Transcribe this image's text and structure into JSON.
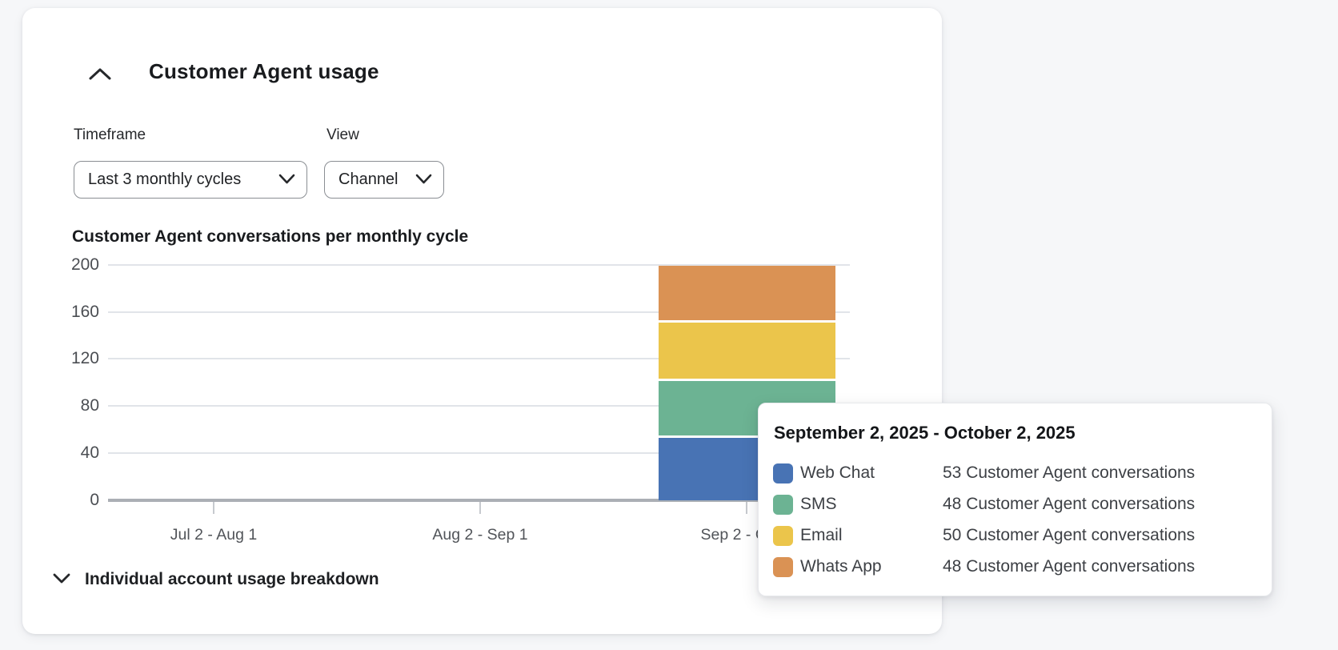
{
  "panel": {
    "title": "Customer Agent usage",
    "collapse_icon": "chevron-up",
    "controls": {
      "timeframe_label": "Timeframe",
      "timeframe_value": "Last 3 monthly cycles",
      "view_label": "View",
      "view_value": "Channel"
    },
    "breakdown": {
      "icon": "chevron-down",
      "label": "Individual account usage breakdown"
    }
  },
  "chart_data": {
    "type": "bar",
    "stacked": true,
    "title": "Customer Agent conversations per monthly cycle",
    "categories": [
      "Jul 2 - Aug 1",
      "Aug 2 - Sep 1",
      "Sep 2 - Oct 2"
    ],
    "series": [
      {
        "name": "Web Chat",
        "color": "#4873b4",
        "values": [
          0,
          0,
          53
        ]
      },
      {
        "name": "SMS",
        "color": "#6cb393",
        "values": [
          0,
          0,
          48
        ]
      },
      {
        "name": "Email",
        "color": "#ebc54b",
        "values": [
          0,
          0,
          50
        ]
      },
      {
        "name": "Whats App",
        "color": "#da9254",
        "values": [
          0,
          0,
          48
        ]
      }
    ],
    "ylim": [
      0,
      200
    ],
    "yticks": [
      0,
      40,
      80,
      120,
      160,
      200
    ],
    "grid": true,
    "legend_position": "none"
  },
  "tooltip": {
    "title": "September 2, 2025 - October 2, 2025",
    "rows": [
      {
        "label": "Web Chat",
        "value": "53 Customer Agent conversations",
        "color": "#4873b4"
      },
      {
        "label": "SMS",
        "value": "48 Customer Agent conversations",
        "color": "#6cb393"
      },
      {
        "label": "Email",
        "value": "50 Customer Agent conversations",
        "color": "#ebc54b"
      },
      {
        "label": "Whats App",
        "value": "48 Customer Agent conversations",
        "color": "#da9254"
      }
    ]
  },
  "colors": {
    "page_bg": "#f6f7f9",
    "card_bg": "#ffffff",
    "gridline": "#e1e4e9",
    "axis_baseline": "#abafb5",
    "axis_text": "#4b4e53"
  }
}
